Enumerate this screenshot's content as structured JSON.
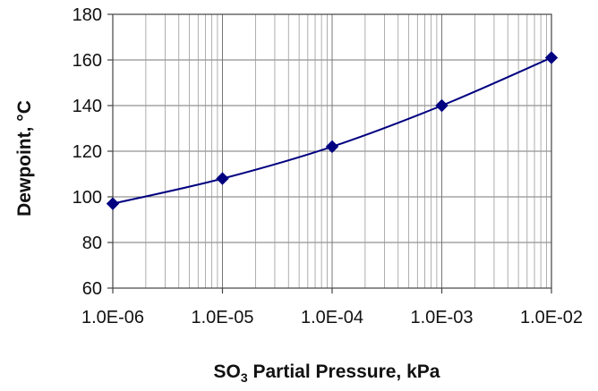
{
  "chart_data": {
    "type": "line",
    "title": "",
    "xlabel": "SO3 Partial Pressure, kPa",
    "xlabel_parts": {
      "pre": "SO",
      "sub": "3",
      "post": " Partial Pressure, kPa"
    },
    "ylabel": "Dewpoint,  °C",
    "x_scale": "log",
    "xlim": [
      1e-06,
      0.01
    ],
    "ylim": [
      60,
      180
    ],
    "x_ticks": [
      "1.0E-06",
      "1.0E-05",
      "1.0E-04",
      "1.0E-03",
      "1.0E-02"
    ],
    "y_ticks": [
      "60",
      "80",
      "100",
      "120",
      "140",
      "160",
      "180"
    ],
    "grid": true,
    "legend": "none",
    "series": [
      {
        "color": "#000080",
        "marker": "diamond",
        "x": [
          1e-06,
          1e-05,
          0.0001,
          0.001,
          0.01
        ],
        "values": [
          97,
          108,
          122,
          140,
          161
        ]
      }
    ]
  }
}
